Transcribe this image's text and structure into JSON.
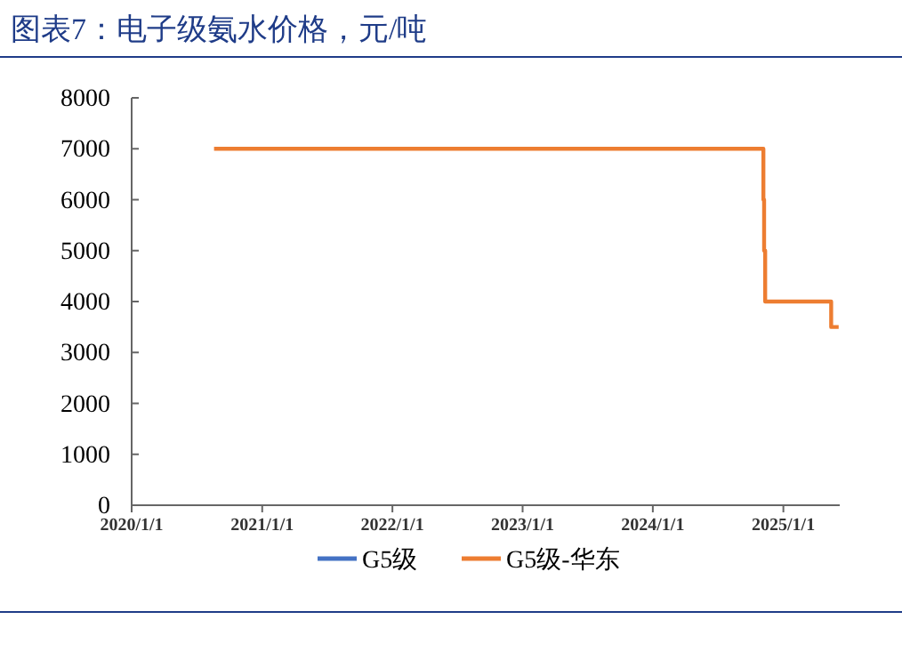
{
  "chart_data": {
    "type": "step",
    "title": "图表7：电子级氨水价格，元/吨",
    "series": [
      {
        "name": "G5级",
        "color": "#4472c4"
      },
      {
        "name": "G5级-华东",
        "color": "#ed7d31",
        "x": [
          "2020-08-19",
          "2024-11-06",
          "2024-11-08",
          "2024-11-11",
          "2025-05-15",
          "2025-06-05"
        ],
        "values": [
          7000,
          6000,
          5000,
          4000,
          3500,
          3500
        ]
      }
    ],
    "xlim": [
      "2020-01-01",
      "2025-06-08"
    ],
    "xticks": [
      {
        "value": "2020-01-01",
        "label": "2020/1/1"
      },
      {
        "value": "2021-01-01",
        "label": "2021/1/1"
      },
      {
        "value": "2022-01-01",
        "label": "2022/1/1"
      },
      {
        "value": "2023-01-01",
        "label": "2023/1/1"
      },
      {
        "value": "2024-01-01",
        "label": "2024/1/1"
      },
      {
        "value": "2025-01-01",
        "label": "2025/1/1"
      }
    ],
    "ylim": [
      0,
      8000
    ],
    "yticks": [
      0,
      1000,
      2000,
      3000,
      4000,
      5000,
      6000,
      7000,
      8000
    ],
    "legend": "bottom",
    "grid": false
  }
}
